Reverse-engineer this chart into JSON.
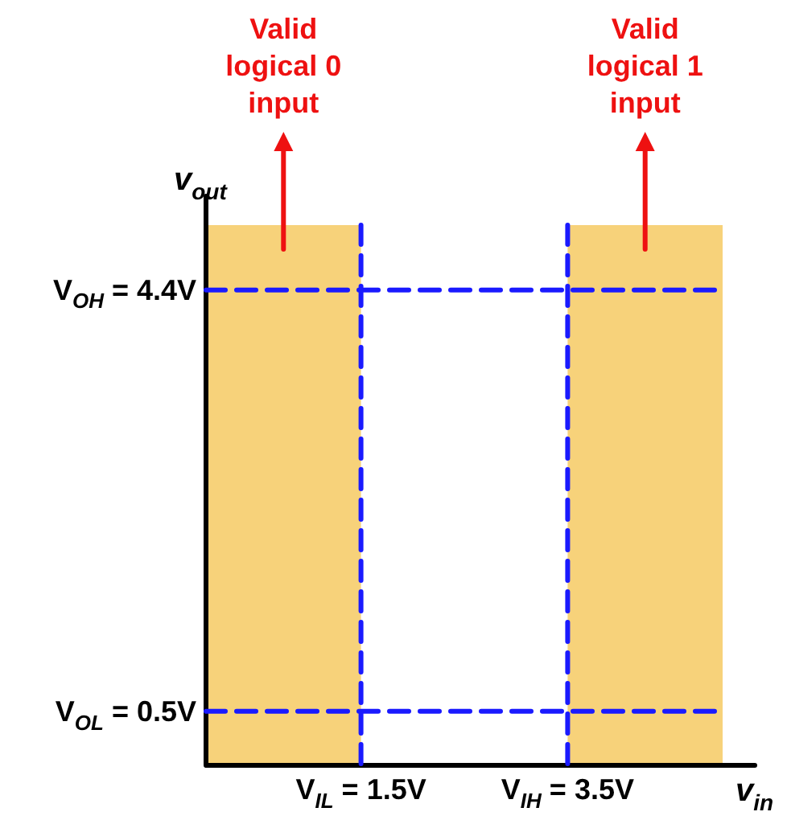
{
  "chart_data": {
    "type": "line",
    "xlabel": "v$_{in}$",
    "ylabel": "v$_{out}$",
    "xlim": [
      0,
      5
    ],
    "ylim": [
      0,
      5
    ],
    "grid": false,
    "legend": false,
    "xticks": [
      {
        "value": 1.5,
        "label": "V$_{IL}$ = 1.5V"
      },
      {
        "value": 3.5,
        "label": "V$_{IH}$ = 3.5V"
      }
    ],
    "yticks": [
      {
        "value": 0.5,
        "label": "V$_{OL}$ = 0.5V"
      },
      {
        "value": 4.4,
        "label": "V$_{OH}$ = 4.4V"
      }
    ],
    "ref_lines": [
      {
        "axis": "y",
        "value": 4.4,
        "color": "#1a1aff",
        "line_style": "dashed"
      },
      {
        "axis": "y",
        "value": 0.5,
        "color": "#1a1aff",
        "line_style": "dashed"
      },
      {
        "axis": "x",
        "value": 1.5,
        "color": "#1a1aff",
        "line_style": "dashed"
      },
      {
        "axis": "x",
        "value": 3.5,
        "color": "#1a1aff",
        "line_style": "dashed"
      }
    ],
    "bands": [
      {
        "axis": "x",
        "from": 0,
        "to": 1.5,
        "label": "Valid logical 0 input",
        "color": "#f7d27a"
      },
      {
        "axis": "x",
        "from": 3.5,
        "to": 5,
        "label": "Valid logical 1 input",
        "color": "#f7d27a"
      }
    ]
  }
}
